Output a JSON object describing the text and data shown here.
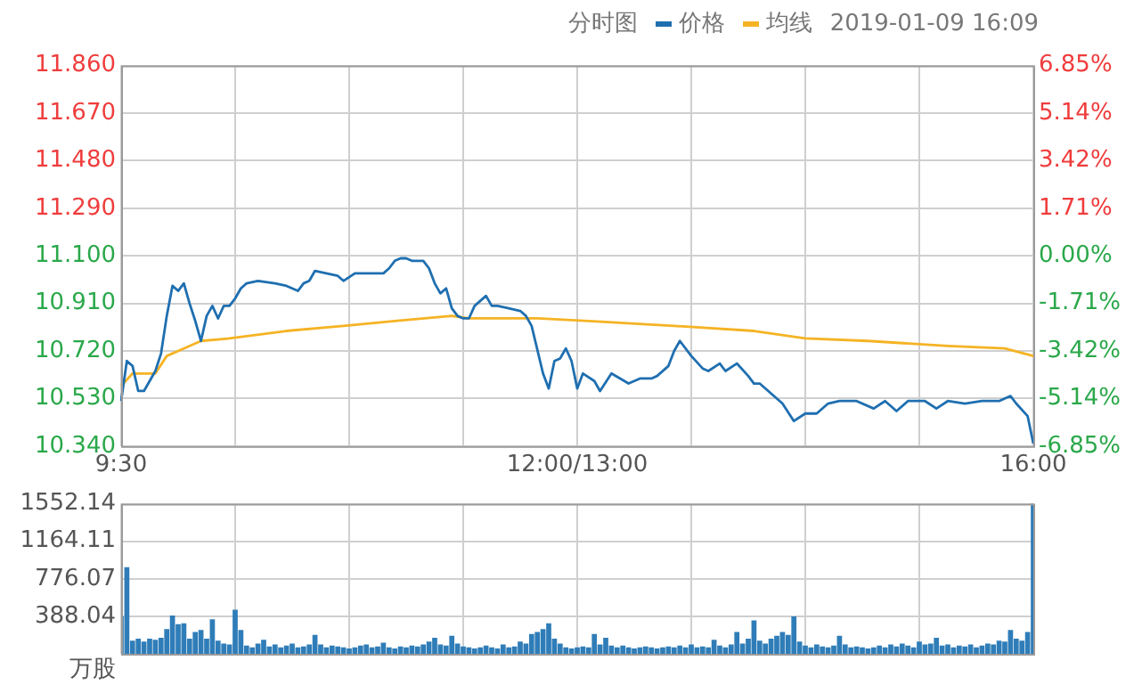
{
  "chart_data": [
    {
      "type": "line",
      "title": "分时图",
      "annotations": [
        "2019-01-09 16:09"
      ],
      "legend": "top right",
      "grid": true,
      "categories": [
        "9:30",
        null,
        null,
        null,
        null,
        null,
        null,
        null,
        null,
        null,
        null,
        null,
        null,
        null,
        null,
        null,
        null,
        null,
        null,
        null,
        null,
        null,
        null,
        null,
        null,
        null,
        null,
        null,
        null,
        null,
        null,
        null,
        null,
        null,
        null,
        null,
        null,
        null,
        null,
        null,
        null,
        null,
        null,
        null,
        null,
        null,
        null,
        null,
        null,
        null,
        null,
        null,
        null,
        null,
        null,
        null,
        null,
        null,
        null,
        null,
        null,
        null,
        null,
        null,
        null,
        null,
        null,
        null,
        null,
        null,
        null,
        null,
        null,
        null,
        null,
        null,
        null,
        null,
        null,
        null,
        "12:00/13:00",
        null,
        null,
        null,
        null,
        null,
        null,
        null,
        null,
        null,
        null,
        null,
        null,
        null,
        null,
        null,
        null,
        null,
        null,
        null,
        null,
        null,
        null,
        null,
        null,
        null,
        null,
        null,
        null,
        null,
        null,
        null,
        null,
        null,
        null,
        null,
        null,
        null,
        null,
        null,
        null,
        null,
        null,
        null,
        null,
        null,
        null,
        null,
        null,
        null,
        null,
        null,
        null,
        null,
        null,
        null,
        null,
        null,
        null,
        null,
        null,
        null,
        null,
        null,
        null,
        null,
        null,
        null,
        null,
        null,
        null,
        null,
        null,
        null,
        null,
        null,
        null,
        null,
        null,
        null,
        "16:00"
      ],
      "ylim": [
        10.34,
        11.86
      ],
      "yticks": [
        {
          "value": 11.86,
          "label": "11.860"
        },
        {
          "value": 11.67,
          "label": "11.670"
        },
        {
          "value": 11.48,
          "label": "11.480"
        },
        {
          "value": 11.29,
          "label": "11.290"
        },
        {
          "value": 11.1,
          "label": "11.100"
        },
        {
          "value": 10.91,
          "label": "10.910"
        },
        {
          "value": 10.72,
          "label": "10.720"
        },
        {
          "value": 10.53,
          "label": "10.530"
        },
        {
          "value": 10.34,
          "label": "10.340"
        }
      ],
      "y2lim": [
        -6.85,
        6.85
      ],
      "y2ticks": [
        {
          "value": 6.85,
          "label": "6.85%"
        },
        {
          "value": 5.14,
          "label": "5.14%"
        },
        {
          "value": 3.42,
          "label": "3.42%"
        },
        {
          "value": 1.71,
          "label": "1.71%"
        },
        {
          "value": 0,
          "label": "0.00%"
        },
        {
          "value": -1.71,
          "label": "-1.71%"
        },
        {
          "value": -3.42,
          "label": "-3.42%"
        },
        {
          "value": -5.14,
          "label": "-5.14%"
        },
        {
          "value": -6.85,
          "label": "-6.85%"
        }
      ],
      "series": [
        {
          "name": "价格",
          "color": "#1f6fb0",
          "values": [
            10.52,
            10.68,
            10.66,
            10.56,
            10.56,
            10.6,
            10.64,
            10.71,
            10.86,
            10.98,
            10.96,
            10.99,
            10.91,
            10.84,
            10.76,
            10.86,
            10.9,
            10.85,
            10.9,
            10.9,
            10.93,
            10.97,
            10.99,
            null,
            11.0,
            null,
            null,
            10.99,
            null,
            10.98,
            null,
            10.96,
            10.99,
            11.0,
            11.04,
            null,
            11.03,
            null,
            11.02,
            11.0,
            null,
            11.03,
            null,
            11.03,
            11.03,
            null,
            11.03,
            11.05,
            11.08,
            11.09,
            11.09,
            11.08,
            11.08,
            11.08,
            11.05,
            10.99,
            10.95,
            10.97,
            10.89,
            10.86,
            10.85,
            10.85,
            10.9,
            null,
            10.94,
            10.9,
            10.9,
            null,
            10.89,
            null,
            10.88,
            10.86,
            10.82,
            null,
            10.63,
            10.57,
            10.68,
            10.69,
            10.73,
            10.68,
            10.57,
            10.63,
            null,
            10.6,
            10.56,
            null,
            10.63,
            null,
            null,
            10.59,
            null,
            10.61,
            null,
            10.61,
            10.62,
            null,
            10.66,
            10.72,
            10.76,
            null,
            10.7,
            null,
            10.65,
            10.64,
            null,
            10.67,
            10.64,
            null,
            10.67,
            null,
            10.62,
            10.59,
            10.59,
            null,
            10.55,
            null,
            10.51,
            null,
            10.44,
            null,
            10.47,
            null,
            10.47,
            null,
            10.51,
            null,
            10.52,
            null,
            null,
            10.52,
            null,
            null,
            10.49,
            null,
            10.52,
            null,
            10.48,
            null,
            10.52,
            null,
            null,
            10.52,
            null,
            10.49,
            null,
            10.52,
            null,
            null,
            10.51,
            null,
            null,
            10.52,
            null,
            null,
            10.52,
            null,
            10.54,
            10.51,
            null,
            10.46,
            10.35
          ]
        },
        {
          "name": "均线",
          "color": "#f5b324",
          "values": [
            10.58,
            null,
            10.63,
            null,
            null,
            null,
            10.63,
            null,
            10.7,
            null,
            null,
            10.73,
            null,
            null,
            10.76,
            null,
            null,
            null,
            null,
            10.77,
            null,
            null,
            null,
            null,
            null,
            null,
            null,
            null,
            null,
            10.8,
            null,
            null,
            null,
            null,
            null,
            null,
            null,
            null,
            null,
            10.82,
            null,
            null,
            null,
            null,
            null,
            null,
            null,
            null,
            10.84,
            null,
            null,
            null,
            null,
            null,
            null,
            null,
            null,
            null,
            10.86,
            null,
            null,
            10.85,
            null,
            null,
            null,
            null,
            null,
            null,
            null,
            null,
            null,
            null,
            null,
            10.85,
            null,
            null,
            null,
            null,
            null,
            null,
            null,
            null,
            10.84,
            null,
            null,
            null,
            null,
            null,
            null,
            null,
            null,
            null,
            null,
            null,
            null,
            null,
            null,
            10.82,
            null,
            null,
            null,
            null,
            null,
            null,
            null,
            null,
            null,
            null,
            null,
            null,
            null,
            10.8,
            null,
            null,
            null,
            null,
            null,
            null,
            null,
            null,
            10.77,
            null,
            null,
            null,
            null,
            null,
            null,
            null,
            null,
            null,
            null,
            10.76,
            null,
            null,
            null,
            null,
            null,
            null,
            null,
            null,
            null,
            null,
            null,
            null,
            null,
            10.74,
            null,
            null,
            null,
            null,
            null,
            null,
            null,
            null,
            null,
            10.73,
            null,
            null,
            null,
            null,
            10.7
          ]
        }
      ]
    },
    {
      "type": "bar",
      "ylabel": "万股",
      "grid": true,
      "tick_labels": "y",
      "color": "#2f7db8",
      "categories": [
        null,
        null,
        null,
        null,
        null,
        null,
        null,
        null,
        null,
        null,
        null,
        null,
        null,
        null,
        null,
        null,
        null,
        null,
        null,
        null,
        null,
        null,
        null,
        null,
        null,
        null,
        null,
        null,
        null,
        null,
        null,
        null,
        null,
        null,
        null,
        null,
        null,
        null,
        null,
        null,
        null,
        null,
        null,
        null,
        null,
        null,
        null,
        null,
        null,
        null,
        null,
        null,
        null,
        null,
        null,
        null,
        null,
        null,
        null,
        null,
        null,
        null,
        null,
        null,
        null,
        null,
        null,
        null,
        null,
        null,
        null,
        null,
        null,
        null,
        null,
        null,
        null,
        null,
        null,
        null,
        null,
        null,
        null,
        null,
        null,
        null,
        null,
        null,
        null,
        null,
        null,
        null,
        null,
        null,
        null,
        null,
        null,
        null,
        null,
        null,
        null,
        null,
        null,
        null,
        null,
        null,
        null,
        null,
        null,
        null,
        null,
        null,
        null,
        null,
        null,
        null,
        null,
        null,
        null,
        null,
        null,
        null,
        null,
        null,
        null,
        null,
        null,
        null,
        null,
        null,
        null,
        null,
        null,
        null,
        null,
        null,
        null,
        null,
        null,
        null,
        null,
        null,
        null,
        null,
        null,
        null,
        null,
        null,
        null,
        null,
        null,
        null,
        null,
        null,
        null,
        null,
        null,
        null,
        null,
        null,
        null
      ],
      "ylim": [
        0,
        1552.14
      ],
      "yticks": [
        388.04,
        776.07,
        1164.11,
        1552.14
      ],
      "values": [
        380,
        890,
        130,
        150,
        120,
        150,
        140,
        160,
        250,
        390,
        300,
        310,
        150,
        220,
        240,
        150,
        350,
        130,
        100,
        90,
        450,
        240,
        80,
        60,
        100,
        140,
        70,
        90,
        60,
        80,
        100,
        60,
        70,
        90,
        190,
        90,
        60,
        80,
        70,
        60,
        50,
        60,
        80,
        90,
        60,
        70,
        110,
        60,
        50,
        70,
        60,
        80,
        70,
        90,
        120,
        160,
        90,
        80,
        180,
        100,
        70,
        60,
        50,
        60,
        80,
        60,
        50,
        90,
        60,
        70,
        120,
        100,
        200,
        220,
        250,
        310,
        150,
        100,
        60,
        50,
        60,
        70,
        60,
        200,
        90,
        160,
        80,
        60,
        80,
        60,
        50,
        60,
        70,
        60,
        50,
        60,
        70,
        60,
        80,
        60,
        90,
        60,
        70,
        60,
        140,
        80,
        60,
        90,
        220,
        100,
        150,
        340,
        130,
        100,
        150,
        180,
        220,
        190,
        380,
        120,
        80,
        60,
        90,
        70,
        60,
        80,
        180,
        90,
        60,
        70,
        60,
        50,
        60,
        80,
        60,
        90,
        70,
        100,
        80,
        60,
        120,
        90,
        100,
        160,
        80,
        90,
        60,
        80,
        70,
        90,
        60,
        80,
        100,
        90,
        130,
        120,
        240,
        150,
        130,
        220,
        1552.14
      ]
    }
  ]
}
